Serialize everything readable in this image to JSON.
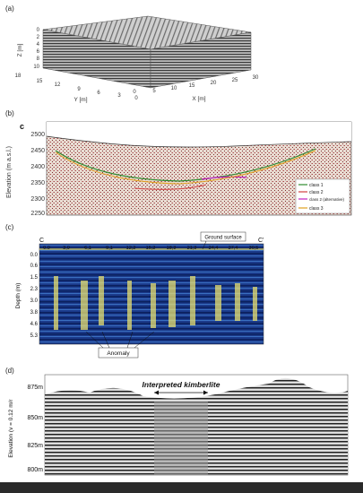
{
  "panels": {
    "a": {
      "letter": "(a)",
      "z_label": "Z [m]",
      "y_label": "Y [m]",
      "x_label": "X [m]",
      "z_ticks": [
        "0",
        "2",
        "4",
        "6",
        "8",
        "10"
      ],
      "y_ticks": [
        "18",
        "15",
        "12",
        "9",
        "6",
        "3",
        "0"
      ],
      "x_ticks": [
        "0",
        "5",
        "10",
        "15",
        "20",
        "25",
        "30"
      ]
    },
    "b": {
      "letter": "(b)",
      "corner_letter": "c",
      "ylabel": "Elevation (m a.s.l.)",
      "y_ticks": [
        "2500",
        "2450",
        "2400",
        "2350",
        "2300",
        "2250"
      ],
      "legend": [
        {
          "label": "class 1",
          "color": "#2e8b2e"
        },
        {
          "label": "class 2",
          "color": "#d04040"
        },
        {
          "label": "class 2 (alternative)",
          "color": "#c020c0"
        },
        {
          "label": "class 3",
          "color": "#e0a020"
        }
      ]
    },
    "c": {
      "letter": "(c)",
      "left_marker": "C",
      "right_marker": "C'",
      "x_ticks": [
        "0.0",
        "3,0",
        "6,1",
        "9,1",
        "12,2",
        "15,2",
        "18,3",
        "21,3",
        "24,4",
        "27,4",
        "30,5"
      ],
      "y_ticks": [
        "0.0",
        "0.6",
        "1.5",
        "2.3",
        "3.0",
        "3.8",
        "4.6",
        "5.3"
      ],
      "ylabel": "Depth (m)",
      "ground_surface_label": "Ground surface",
      "anomaly_label": "Anomaly"
    },
    "d": {
      "letter": "(d)",
      "ylabel": "Elevation (v = 0.12 m/r",
      "y_ticks": [
        "875m",
        "850m",
        "825m",
        "800m"
      ],
      "annotation": "Interpreted kimberlite"
    }
  },
  "colors": {
    "radar_blue": "#1b3a8a",
    "radar_dark": "#0a1f5c",
    "reflection_yellow": "#e8e070",
    "section_red": "#b03030",
    "footer": "#2a2a2a"
  }
}
